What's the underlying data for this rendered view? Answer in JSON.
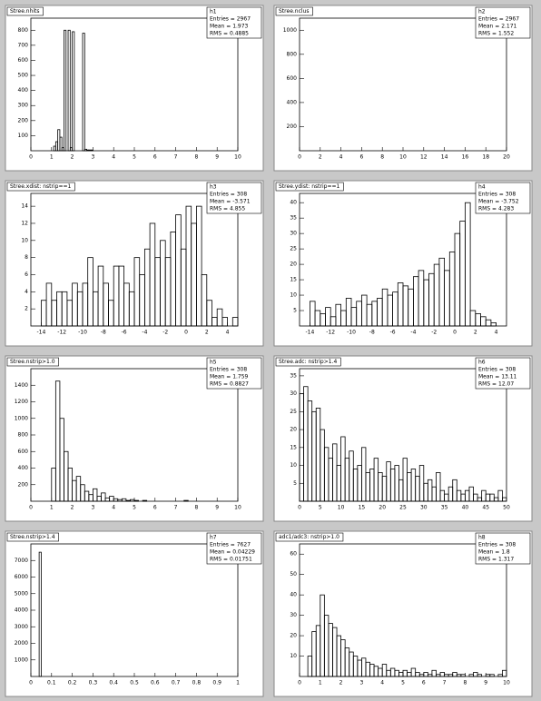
{
  "chart_data": [
    {
      "type": "histogram",
      "title": "Stree.nhits",
      "stats": [
        "h1",
        "Entries = 2967",
        "Mean = 1.973",
        "RMS = 0.4885"
      ],
      "bins": [
        0,
        1.0,
        1.1,
        1.2,
        1.3,
        1.4,
        1.5,
        1.6,
        1.7,
        1.8,
        1.9,
        2.0,
        2.1,
        2.2,
        2.3,
        2.4,
        2.5,
        2.6,
        2.7,
        2.8,
        2.9,
        3.0,
        10
      ],
      "values": [
        0,
        0,
        30,
        60,
        140,
        90,
        20,
        800,
        0,
        800,
        20,
        790,
        0,
        0,
        0,
        0,
        780,
        10,
        5,
        5,
        5,
        0
      ],
      "xlim": [
        0,
        10
      ],
      "xticks": [
        0,
        1,
        2,
        3,
        4,
        5,
        6,
        7,
        8,
        9,
        10
      ],
      "ylim": [
        0,
        880
      ],
      "yticks": [
        100,
        200,
        300,
        400,
        500,
        600,
        700,
        800
      ],
      "color": "#000000"
    },
    {
      "type": "histogram",
      "title": "Stree.nclus",
      "stats": [
        "h2",
        "Entries = 2967",
        "Mean = 2.171",
        "RMS = 1.552"
      ],
      "bins": [
        0,
        20
      ],
      "values": [
        0
      ],
      "xlim": [
        0,
        20
      ],
      "xticks": [
        0,
        2,
        4,
        6,
        8,
        10,
        12,
        14,
        16,
        18,
        20
      ],
      "ylim": [
        0,
        1100
      ],
      "yticks": [
        200,
        400,
        600,
        800,
        1000
      ],
      "color": "#000000"
    },
    {
      "type": "histogram",
      "title": "Stree.xdist: nstrip==1",
      "stats": [
        "h3",
        "Entries = 308",
        "Mean = -3.571",
        "RMS = 4.855"
      ],
      "bins": [
        -14,
        -13.5,
        -13,
        -12.5,
        -12,
        -11.5,
        -11,
        -10.5,
        -10,
        -9.5,
        -9,
        -8.5,
        -8,
        -7.5,
        -7,
        -6.5,
        -6,
        -5.5,
        -5,
        -4.5,
        -4,
        -3.5,
        -3,
        -2.5,
        -2,
        -1.5,
        -1,
        -0.5,
        0,
        0.5,
        1,
        1.5,
        2,
        2.5,
        3,
        3.5,
        4,
        4.5,
        5
      ],
      "values": [
        3,
        5,
        3,
        4,
        4,
        3,
        5,
        4,
        5,
        8,
        4,
        7,
        5,
        3,
        7,
        7,
        5,
        4,
        8,
        6,
        9,
        12,
        8,
        10,
        8,
        11,
        13,
        9,
        14,
        12,
        14,
        6,
        3,
        1,
        2,
        1,
        0,
        1
      ],
      "xlim": [
        -15,
        5
      ],
      "xticks": [
        -14,
        -12,
        -10,
        -8,
        -6,
        -4,
        -2,
        0,
        2,
        4
      ],
      "ylim": [
        0,
        15.5
      ],
      "yticks": [
        2,
        4,
        6,
        8,
        10,
        12,
        14
      ],
      "color": "#000000"
    },
    {
      "type": "histogram",
      "title": "Stree.ydist: nstrip==1",
      "stats": [
        "h4",
        "Entries = 308",
        "Mean = -3.752",
        "RMS = 4.283"
      ],
      "bins": [
        -14,
        -13.5,
        -13,
        -12.5,
        -12,
        -11.5,
        -11,
        -10.5,
        -10,
        -9.5,
        -9,
        -8.5,
        -8,
        -7.5,
        -7,
        -6.5,
        -6,
        -5.5,
        -5,
        -4.5,
        -4,
        -3.5,
        -3,
        -2.5,
        -2,
        -1.5,
        -1,
        -0.5,
        0,
        0.5,
        1,
        1.5,
        2,
        2.5,
        3,
        3.5,
        4,
        4.5,
        5
      ],
      "values": [
        8,
        5,
        4,
        6,
        3,
        7,
        5,
        9,
        6,
        8,
        10,
        7,
        8,
        9,
        12,
        10,
        11,
        14,
        13,
        12,
        16,
        18,
        15,
        17,
        20,
        22,
        18,
        24,
        30,
        34,
        40,
        5,
        4,
        3,
        2,
        1,
        0,
        0
      ],
      "xlim": [
        -15,
        5
      ],
      "xticks": [
        -14,
        -12,
        -10,
        -8,
        -6,
        -4,
        -2,
        0,
        2,
        4
      ],
      "ylim": [
        0,
        43
      ],
      "yticks": [
        5,
        10,
        15,
        20,
        25,
        30,
        35,
        40
      ],
      "color": "#000000"
    },
    {
      "type": "histogram",
      "title": "Stree.nstrip>1.0",
      "stats": [
        "h5",
        "Entries = 308",
        "Mean = 1.759",
        "RMS = 0.8827"
      ],
      "bins": [
        0,
        0.2,
        0.4,
        0.6,
        0.8,
        1.0,
        1.2,
        1.4,
        1.6,
        1.8,
        2.0,
        2.2,
        2.4,
        2.6,
        2.8,
        3.0,
        3.2,
        3.4,
        3.6,
        3.8,
        4.0,
        4.2,
        4.4,
        4.6,
        4.8,
        5.0,
        5.2,
        5.4,
        5.6,
        5.8,
        6.0,
        6.2,
        6.4,
        6.6,
        6.8,
        7.0,
        7.2,
        7.4,
        7.6,
        7.8,
        8.0,
        8.2,
        8.4,
        8.6,
        8.8,
        9.0,
        9.2,
        9.4,
        9.6,
        9.8,
        10
      ],
      "values": [
        0,
        0,
        0,
        0,
        0,
        400,
        1450,
        1000,
        600,
        400,
        250,
        300,
        200,
        120,
        80,
        150,
        60,
        100,
        40,
        60,
        30,
        20,
        30,
        10,
        20,
        10,
        0,
        10,
        0,
        0,
        0,
        0,
        0,
        0,
        0,
        0,
        0,
        10,
        0,
        0,
        0,
        0,
        0,
        0,
        0,
        0,
        0,
        0,
        0,
        0
      ],
      "xlim": [
        0,
        10
      ],
      "xticks": [
        0,
        1,
        2,
        3,
        4,
        5,
        6,
        7,
        8,
        9,
        10
      ],
      "ylim": [
        0,
        1600
      ],
      "yticks": [
        200,
        400,
        600,
        800,
        1000,
        1200,
        1400
      ],
      "color": "#000000"
    },
    {
      "type": "histogram",
      "title": "Stree.adc: nstrip>1.4",
      "stats": [
        "h6",
        "Entries = 308",
        "Mean = 13.11",
        "RMS = 12.07"
      ],
      "bins": [
        0,
        1,
        2,
        3,
        4,
        5,
        6,
        7,
        8,
        9,
        10,
        11,
        12,
        13,
        14,
        15,
        16,
        17,
        18,
        19,
        20,
        21,
        22,
        23,
        24,
        25,
        26,
        27,
        28,
        29,
        30,
        31,
        32,
        33,
        34,
        35,
        36,
        37,
        38,
        39,
        40,
        41,
        42,
        43,
        44,
        45,
        46,
        47,
        48,
        49,
        50
      ],
      "values": [
        30,
        32,
        28,
        25,
        26,
        20,
        15,
        12,
        16,
        10,
        18,
        12,
        14,
        9,
        10,
        15,
        8,
        9,
        12,
        8,
        7,
        11,
        9,
        10,
        6,
        12,
        8,
        9,
        7,
        10,
        5,
        6,
        4,
        8,
        3,
        2,
        4,
        6,
        3,
        2,
        3,
        4,
        2,
        1,
        3,
        2,
        2,
        1,
        3,
        1
      ],
      "xlim": [
        0,
        50
      ],
      "xticks": [
        0,
        5,
        10,
        15,
        20,
        25,
        30,
        35,
        40,
        45,
        50
      ],
      "ylim": [
        0,
        37
      ],
      "yticks": [
        5,
        10,
        15,
        20,
        25,
        30,
        35
      ],
      "color": "#000000"
    },
    {
      "type": "histogram",
      "title": "Stree.nstrip>1.4",
      "stats": [
        "h7",
        "Entries = 7627",
        "Mean = 0.04229",
        "RMS = 0.01751"
      ],
      "bins": [
        0,
        0.04,
        0.05,
        1
      ],
      "values": [
        0,
        7500,
        0
      ],
      "xlim": [
        0,
        1
      ],
      "xticks": [
        0,
        0.1,
        0.2,
        0.3,
        0.4,
        0.5,
        0.6,
        0.7,
        0.8,
        0.9,
        1
      ],
      "ylim": [
        0,
        8000
      ],
      "yticks": [
        1000,
        2000,
        3000,
        4000,
        5000,
        6000,
        7000
      ],
      "color": "#000000"
    },
    {
      "type": "histogram",
      "title": "adc1/adc3: nstrip>1.0",
      "stats": [
        "h8",
        "Entries = 308",
        "Mean = 1.8",
        "RMS = 1.317"
      ],
      "bins": [
        0,
        0.2,
        0.4,
        0.6,
        0.8,
        1.0,
        1.2,
        1.4,
        1.6,
        1.8,
        2.0,
        2.2,
        2.4,
        2.6,
        2.8,
        3.0,
        3.2,
        3.4,
        3.6,
        3.8,
        4.0,
        4.2,
        4.4,
        4.6,
        4.8,
        5.0,
        5.2,
        5.4,
        5.6,
        5.8,
        6.0,
        6.2,
        6.4,
        6.6,
        6.8,
        7.0,
        7.2,
        7.4,
        7.6,
        7.8,
        8.0,
        8.2,
        8.4,
        8.6,
        8.8,
        9.0,
        9.2,
        9.4,
        9.6,
        9.8,
        10
      ],
      "values": [
        0,
        0,
        10,
        22,
        25,
        40,
        30,
        26,
        24,
        20,
        18,
        14,
        12,
        10,
        8,
        9,
        7,
        6,
        5,
        4,
        6,
        3,
        4,
        3,
        2,
        3,
        2,
        4,
        2,
        1,
        2,
        1,
        3,
        1,
        2,
        1,
        1,
        2,
        1,
        1,
        0,
        1,
        2,
        1,
        0,
        1,
        1,
        0,
        1,
        3
      ],
      "xlim": [
        0,
        10
      ],
      "xticks": [
        0,
        1,
        2,
        3,
        4,
        5,
        6,
        7,
        8,
        9,
        10
      ],
      "ylim": [
        0,
        65
      ],
      "yticks": [
        10,
        20,
        30,
        40,
        50,
        60
      ],
      "color": "#000000"
    }
  ]
}
